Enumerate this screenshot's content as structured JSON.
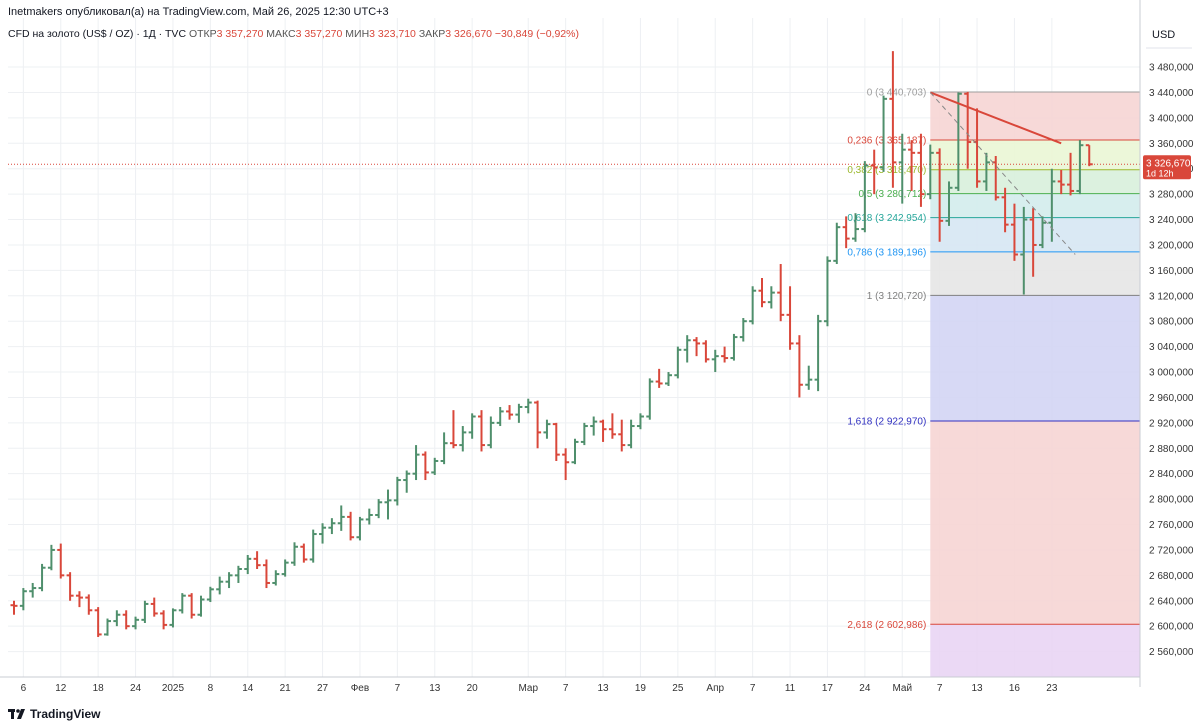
{
  "header": {
    "publisher_line": "Inetmakers опубликовал(а) на TradingView.com, Май 26, 2025 12:30 UTC+3",
    "symbol": "CFD на золото (US$ / OZ) · 1Д · TVC",
    "open_label": "ОТКР",
    "open_value": "3 357,270",
    "high_label": "МАКС",
    "high_value": "3 357,270",
    "low_label": "МИН",
    "low_value": "3 323,710",
    "close_label": "ЗАКР",
    "close_value": "3 326,670",
    "change": "−30,849 (−0,92%)"
  },
  "footer": {
    "brand": "TradingView"
  },
  "colors": {
    "up": "#4f8f6c",
    "down": "#d9473a",
    "grid": "#eef0f3",
    "axis_text": "#333333"
  },
  "chart_data": {
    "type": "bar",
    "subtype": "ohlc",
    "currency_label": "USD",
    "ylim": [
      2520,
      3510
    ],
    "y_ticks": [
      2560,
      2600,
      2640,
      2680,
      2720,
      2760,
      2800,
      2840,
      2880,
      2920,
      2960,
      3000,
      3040,
      3080,
      3120,
      3160,
      3200,
      3240,
      3280,
      3320,
      3360,
      3400,
      3440,
      3480
    ],
    "y_tick_labels": [
      "2 560,000",
      "2 600,000",
      "2 640,000",
      "2 680,000",
      "2 720,000",
      "2 760,000",
      "2 800,000",
      "2 840,000",
      "2 880,000",
      "2 920,000",
      "2 960,000",
      "3 000,000",
      "3 040,000",
      "3 080,000",
      "3 120,000",
      "3 160,000",
      "3 200,000",
      "3 240,000",
      "3 280,000",
      "3 320,000",
      "3 360,000",
      "3 400,000",
      "3 440,000",
      "3 480,000"
    ],
    "x_ticks": [
      {
        "i": 1,
        "label": "6"
      },
      {
        "i": 5,
        "label": "12"
      },
      {
        "i": 9,
        "label": "18"
      },
      {
        "i": 13,
        "label": "24"
      },
      {
        "i": 17,
        "label": "2025"
      },
      {
        "i": 21,
        "label": "8"
      },
      {
        "i": 25,
        "label": "14"
      },
      {
        "i": 29,
        "label": "21"
      },
      {
        "i": 33,
        "label": "27"
      },
      {
        "i": 37,
        "label": "Фев"
      },
      {
        "i": 41,
        "label": "7"
      },
      {
        "i": 45,
        "label": "13"
      },
      {
        "i": 49,
        "label": "20"
      },
      {
        "i": 55,
        "label": "Мар"
      },
      {
        "i": 59,
        "label": "7"
      },
      {
        "i": 63,
        "label": "13"
      },
      {
        "i": 67,
        "label": "19"
      },
      {
        "i": 71,
        "label": "25"
      },
      {
        "i": 75,
        "label": "Апр"
      },
      {
        "i": 79,
        "label": "7"
      },
      {
        "i": 83,
        "label": "11"
      },
      {
        "i": 87,
        "label": "17"
      },
      {
        "i": 91,
        "label": "24"
      },
      {
        "i": 95,
        "label": "Май"
      },
      {
        "i": 99,
        "label": "7"
      },
      {
        "i": 103,
        "label": "13"
      },
      {
        "i": 107,
        "label": "16"
      },
      {
        "i": 111,
        "label": "23"
      }
    ],
    "series": [
      {
        "name": "CFD на золото (US$ / OZ)",
        "ohlc": [
          [
            2633,
            2640,
            2618,
            2632
          ],
          [
            2632,
            2660,
            2625,
            2655
          ],
          [
            2655,
            2668,
            2645,
            2660
          ],
          [
            2660,
            2698,
            2655,
            2692
          ],
          [
            2692,
            2728,
            2688,
            2720
          ],
          [
            2720,
            2730,
            2675,
            2680
          ],
          [
            2680,
            2685,
            2640,
            2648
          ],
          [
            2648,
            2655,
            2630,
            2645
          ],
          [
            2645,
            2650,
            2618,
            2625
          ],
          [
            2625,
            2630,
            2583,
            2587
          ],
          [
            2587,
            2612,
            2585,
            2608
          ],
          [
            2608,
            2625,
            2600,
            2618
          ],
          [
            2618,
            2625,
            2595,
            2600
          ],
          [
            2600,
            2615,
            2595,
            2610
          ],
          [
            2610,
            2640,
            2605,
            2635
          ],
          [
            2635,
            2645,
            2615,
            2620
          ],
          [
            2620,
            2625,
            2595,
            2602
          ],
          [
            2602,
            2628,
            2598,
            2625
          ],
          [
            2625,
            2652,
            2620,
            2648
          ],
          [
            2648,
            2652,
            2612,
            2618
          ],
          [
            2618,
            2648,
            2615,
            2642
          ],
          [
            2642,
            2662,
            2638,
            2658
          ],
          [
            2658,
            2678,
            2650,
            2670
          ],
          [
            2670,
            2685,
            2660,
            2680
          ],
          [
            2680,
            2695,
            2668,
            2690
          ],
          [
            2690,
            2712,
            2682,
            2706
          ],
          [
            2706,
            2718,
            2690,
            2696
          ],
          [
            2696,
            2705,
            2660,
            2668
          ],
          [
            2668,
            2688,
            2664,
            2682
          ],
          [
            2682,
            2705,
            2678,
            2700
          ],
          [
            2700,
            2732,
            2695,
            2725
          ],
          [
            2725,
            2730,
            2700,
            2705
          ],
          [
            2705,
            2752,
            2700,
            2745
          ],
          [
            2745,
            2762,
            2730,
            2755
          ],
          [
            2755,
            2770,
            2745,
            2762
          ],
          [
            2762,
            2790,
            2750,
            2772
          ],
          [
            2772,
            2780,
            2735,
            2740
          ],
          [
            2740,
            2772,
            2735,
            2768
          ],
          [
            2768,
            2785,
            2760,
            2775
          ],
          [
            2775,
            2800,
            2770,
            2795
          ],
          [
            2795,
            2815,
            2768,
            2798
          ],
          [
            2798,
            2835,
            2790,
            2830
          ],
          [
            2830,
            2845,
            2810,
            2840
          ],
          [
            2840,
            2885,
            2830,
            2870
          ],
          [
            2870,
            2875,
            2830,
            2842
          ],
          [
            2842,
            2865,
            2838,
            2860
          ],
          [
            2860,
            2905,
            2855,
            2888
          ],
          [
            2888,
            2940,
            2880,
            2885
          ],
          [
            2885,
            2915,
            2875,
            2905
          ],
          [
            2905,
            2935,
            2895,
            2930
          ],
          [
            2930,
            2940,
            2875,
            2885
          ],
          [
            2885,
            2930,
            2880,
            2920
          ],
          [
            2920,
            2945,
            2915,
            2938
          ],
          [
            2938,
            2948,
            2925,
            2933
          ],
          [
            2933,
            2950,
            2920,
            2945
          ],
          [
            2945,
            2958,
            2935,
            2952
          ],
          [
            2952,
            2955,
            2880,
            2905
          ],
          [
            2905,
            2925,
            2895,
            2918
          ],
          [
            2918,
            2920,
            2860,
            2870
          ],
          [
            2870,
            2880,
            2830,
            2858
          ],
          [
            2858,
            2895,
            2855,
            2890
          ],
          [
            2890,
            2920,
            2885,
            2915
          ],
          [
            2915,
            2930,
            2900,
            2922
          ],
          [
            2922,
            2925,
            2890,
            2910
          ],
          [
            2910,
            2935,
            2895,
            2902
          ],
          [
            2902,
            2925,
            2875,
            2885
          ],
          [
            2885,
            2925,
            2880,
            2915
          ],
          [
            2915,
            2935,
            2910,
            2930
          ],
          [
            2930,
            2990,
            2925,
            2985
          ],
          [
            2985,
            3005,
            2975,
            2982
          ],
          [
            2982,
            3000,
            2978,
            2995
          ],
          [
            2995,
            3040,
            2990,
            3035
          ],
          [
            3035,
            3058,
            3015,
            3050
          ],
          [
            3050,
            3055,
            3025,
            3045
          ],
          [
            3045,
            3050,
            3015,
            3020
          ],
          [
            3020,
            3035,
            3000,
            3025
          ],
          [
            3025,
            3040,
            3015,
            3022
          ],
          [
            3022,
            3060,
            3018,
            3055
          ],
          [
            3055,
            3085,
            3048,
            3080
          ],
          [
            3080,
            3135,
            3075,
            3128
          ],
          [
            3128,
            3148,
            3102,
            3110
          ],
          [
            3110,
            3135,
            3100,
            3125
          ],
          [
            3125,
            3170,
            3080,
            3090
          ],
          [
            3090,
            3135,
            3035,
            3045
          ],
          [
            3045,
            3058,
            2960,
            2980
          ],
          [
            2980,
            3010,
            2972,
            2988
          ],
          [
            2988,
            3090,
            2970,
            3080
          ],
          [
            3080,
            3182,
            3072,
            3175
          ],
          [
            3175,
            3235,
            3170,
            3228
          ],
          [
            3228,
            3245,
            3195,
            3210
          ],
          [
            3210,
            3250,
            3205,
            3225
          ],
          [
            3225,
            3332,
            3220,
            3325
          ],
          [
            3325,
            3350,
            3280,
            3322
          ],
          [
            3322,
            3435,
            3315,
            3430
          ],
          [
            3430,
            3505,
            3290,
            3330
          ],
          [
            3330,
            3375,
            3265,
            3350
          ],
          [
            3350,
            3365,
            3285,
            3345
          ],
          [
            3345,
            3375,
            3260,
            3280
          ],
          [
            3280,
            3358,
            3272,
            3345
          ],
          [
            3345,
            3352,
            3205,
            3238
          ],
          [
            3238,
            3300,
            3230,
            3290
          ],
          [
            3290,
            3440,
            3285,
            3438
          ],
          [
            3438,
            3441,
            3320,
            3362
          ],
          [
            3362,
            3415,
            3290,
            3300
          ],
          [
            3300,
            3345,
            3285,
            3330
          ],
          [
            3330,
            3340,
            3270,
            3275
          ],
          [
            3275,
            3290,
            3220,
            3232
          ],
          [
            3232,
            3265,
            3175,
            3185
          ],
          [
            3185,
            3260,
            3122,
            3240
          ],
          [
            3240,
            3258,
            3150,
            3200
          ],
          [
            3200,
            3245,
            3195,
            3235
          ],
          [
            3235,
            3320,
            3205,
            3300
          ],
          [
            3300,
            3318,
            3280,
            3295
          ],
          [
            3295,
            3345,
            3278,
            3285
          ],
          [
            3285,
            3365,
            3280,
            3357
          ],
          [
            3357,
            3357,
            3324,
            3327
          ]
        ]
      }
    ],
    "last_price_label": "3 326,670",
    "countdown_label": "1d 12h",
    "fib": {
      "x_start_index": 98,
      "levels": [
        {
          "ratio": "0",
          "price": 3440.703,
          "label": "0 (3 440,703)",
          "color": "#9e9e9e",
          "fill": "#f6d5d4"
        },
        {
          "ratio": "0.236",
          "price": 3365.187,
          "label": "0,236 (3 365,187)",
          "color": "#d9473a",
          "fill": "#eaf6d5"
        },
        {
          "ratio": "0.382",
          "price": 3318.47,
          "label": "0,382 (3 318,470)",
          "color": "#9bb82c",
          "fill": "#d8f0dc"
        },
        {
          "ratio": "0.5",
          "price": 3280.712,
          "label": "0,5 (3 280,712)",
          "color": "#4caf50",
          "fill": "#d3ecec"
        },
        {
          "ratio": "0.618",
          "price": 3242.954,
          "label": "0,618 (3 242,954)",
          "color": "#26a69a",
          "fill": "#d6e7f3"
        },
        {
          "ratio": "0.786",
          "price": 3189.196,
          "label": "0,786 (3 189,196)",
          "color": "#2196f3",
          "fill": "#e6e6e6"
        },
        {
          "ratio": "1",
          "price": 3120.72,
          "label": "1 (3 120,720)",
          "color": "#808080",
          "fill": "#d3d5f4"
        },
        {
          "ratio": "1.618",
          "price": 2922.97,
          "label": "1,618 (2 922,970)",
          "color": "#3030c0",
          "fill": "#f6d5d4"
        },
        {
          "ratio": "2.618",
          "price": 2602.986,
          "label": "2,618 (2 602,986)",
          "color": "#d9473a",
          "fill": "#e9d5f4"
        }
      ]
    },
    "trendline": {
      "from": {
        "i": 98,
        "price": 3440
      },
      "to": {
        "i": 112,
        "price": 3360
      },
      "color": "#d9473a"
    },
    "dashed_line": {
      "from": {
        "i": 98,
        "price": 3440
      },
      "to": {
        "i": 113.5,
        "price": 3185
      },
      "color": "#888888"
    }
  }
}
